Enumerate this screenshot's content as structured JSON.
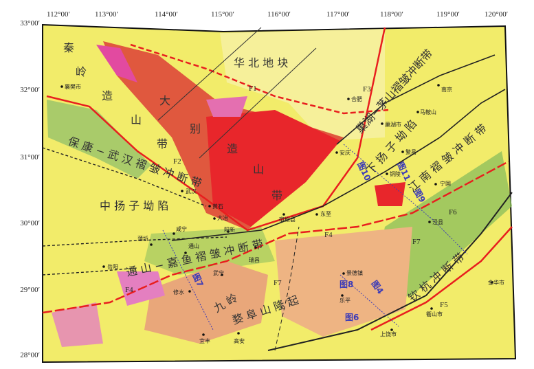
{
  "map": {
    "longitude_labels": [
      "112°00′",
      "113°00′",
      "114°00′",
      "115°00′",
      "116°00′",
      "117°00′",
      "118°00′",
      "119°00′",
      "120°00′"
    ],
    "latitude_labels": [
      "33°00′",
      "32°00′",
      "31°00′",
      "30°00′",
      "29°00′",
      "28°00′"
    ],
    "tectonic_units": {
      "qinling": "秦",
      "qinling2": "岭",
      "zao": "造",
      "shan": "山",
      "dai": "带",
      "dabie1": "大",
      "dabie2": "别",
      "dabie_zao": "造",
      "dabie_shan": "山",
      "dabie_dai": "带",
      "huabei": "华  北  地  块",
      "baokang": "保 康 − 武 汉 褶 皱 冲 断 带",
      "zhongyangzi": "中 扬 子 坳 陷",
      "chaohu": "巢湖−茅山褶皱冲断带",
      "xiayangzi": "下 扬 子 坳 陷",
      "jiangnan": "江 南 褶 皱 冲 断 带",
      "tongshan": "通 山 − 嘉 鱼 褶 皱 冲 断 带",
      "jiuling": "九 岭",
      "huaiyu": "婺 阜 山 隆 起",
      "qinhang": "钦 杭 冲 断 带"
    },
    "faults": [
      "F1",
      "F2",
      "F3",
      "F4",
      "F4",
      "F5",
      "F6",
      "F7",
      "F7"
    ],
    "cities": [
      "襄樊市",
      "合肥",
      "巢湖市",
      "马鞍山",
      "南京",
      "繁昌",
      "宁国",
      "武汉",
      "黄石",
      "大冶",
      "阳新",
      "咸宁",
      "蒲圻",
      "瑞昌",
      "通山",
      "岳阳",
      "武宁",
      "修水",
      "宜丰",
      "高安",
      "宿松县",
      "安庆",
      "景德镇",
      "乐平",
      "上饶市",
      "衢山市",
      "金华市",
      "铜陵",
      "泾县",
      "东至"
    ],
    "figure_labels": [
      "图10",
      "图11",
      "图9",
      "图7",
      "图8",
      "图4",
      "图6"
    ],
    "colors": {
      "background": "#f2ec6a",
      "granite": "#e8262b",
      "orogen": "#e0583e",
      "pink": "#e46fb0",
      "green": "#8cbf5a",
      "orange": "#e9a77a",
      "fault_major": "#e81e1e",
      "fault": "#222222",
      "section": "#3a3ab8"
    }
  }
}
